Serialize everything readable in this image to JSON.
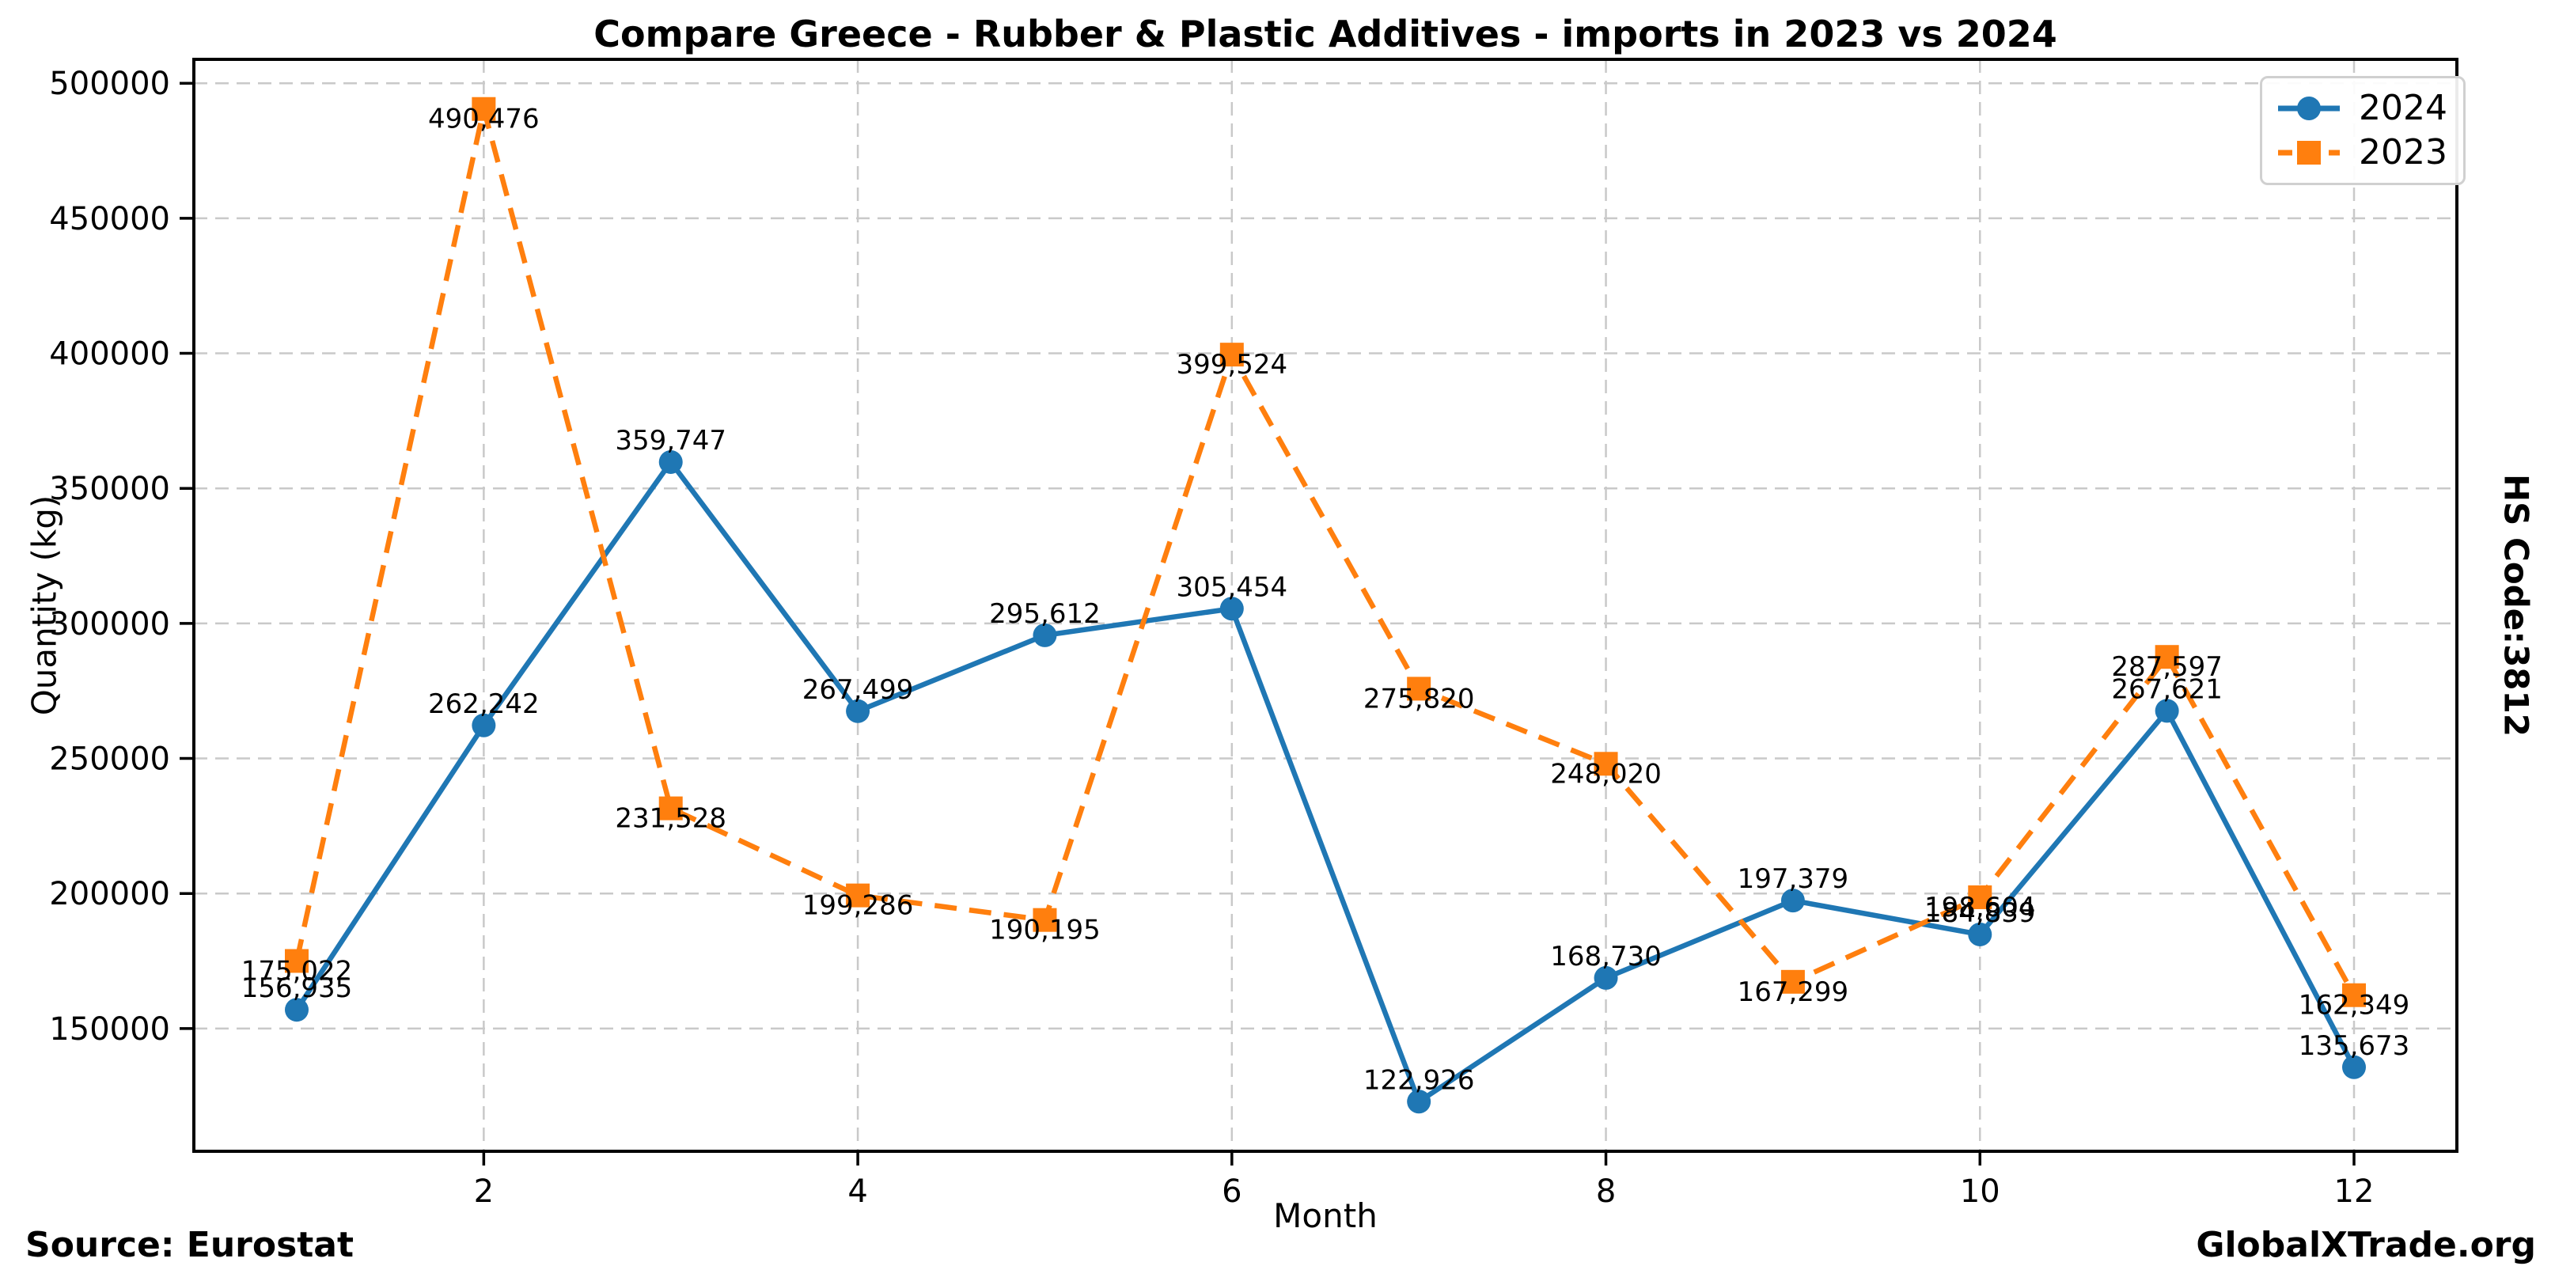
{
  "right_label": "HS Code:3812",
  "footer": {
    "source": "Source: Eurostat",
    "watermark": "GlobalXTrade.org"
  },
  "chart_data": {
    "type": "line",
    "title": "Compare Greece - Rubber & Plastic Additives - imports in 2023 vs 2024",
    "xlabel": "Month",
    "ylabel": "Quantity (kg)",
    "x": [
      1,
      2,
      3,
      4,
      5,
      6,
      7,
      8,
      9,
      10,
      11,
      12
    ],
    "xticks": [
      2,
      4,
      6,
      8,
      10,
      12
    ],
    "yticks": [
      150000,
      200000,
      250000,
      300000,
      350000,
      400000,
      450000,
      500000
    ],
    "xlim": [
      0.45,
      12.55
    ],
    "ylim": [
      104549,
      508853
    ],
    "grid": true,
    "legend_position": "upper right",
    "series": [
      {
        "name": "2024",
        "color": "#1f77b4",
        "marker": "circle",
        "line_style": "solid",
        "label_position": "above",
        "values": [
          156935,
          262242,
          359747,
          267499,
          295612,
          305454,
          122926,
          168730,
          197379,
          184839,
          267621,
          135673
        ]
      },
      {
        "name": "2023",
        "color": "#ff7f0e",
        "marker": "square",
        "line_style": "dashed",
        "label_position": "center",
        "values": [
          175022,
          490476,
          231528,
          199286,
          190195,
          399524,
          275820,
          248020,
          167299,
          198604,
          287597,
          162349
        ]
      }
    ]
  }
}
